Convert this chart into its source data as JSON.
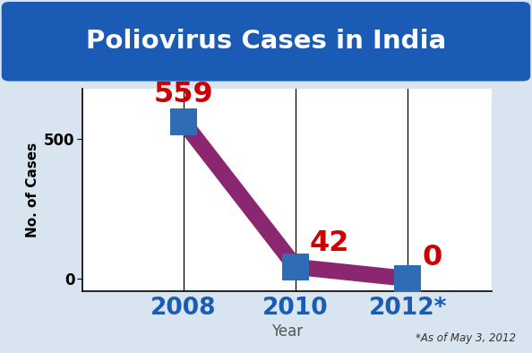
{
  "title": "Poliovirus Cases in India",
  "xlabel": "Year",
  "ylabel": "No. of Cases",
  "years": [
    2008,
    2010,
    2012
  ],
  "values": [
    559,
    42,
    0
  ],
  "xtick_labels": [
    "2008",
    "2010",
    "2012*"
  ],
  "ytick_values": [
    0,
    500
  ],
  "data_labels": [
    "559",
    "42",
    "0"
  ],
  "annotation": "*As of May 3, 2012",
  "line_color": "#8B2670",
  "marker_color": "#2E6DB4",
  "label_color": "#CC0000",
  "title_color": "#FFFFFF",
  "title_bg_color": "#1A5BB5",
  "xtick_color": "#1A5BB5",
  "bg_color": "#D8E4F0",
  "plot_bg_color": "#FFFFFF",
  "border_color": "#2060B0",
  "ylim": [
    -45,
    680
  ],
  "xlim": [
    2006.2,
    2013.5
  ],
  "line_width": 13,
  "marker_size": 22
}
